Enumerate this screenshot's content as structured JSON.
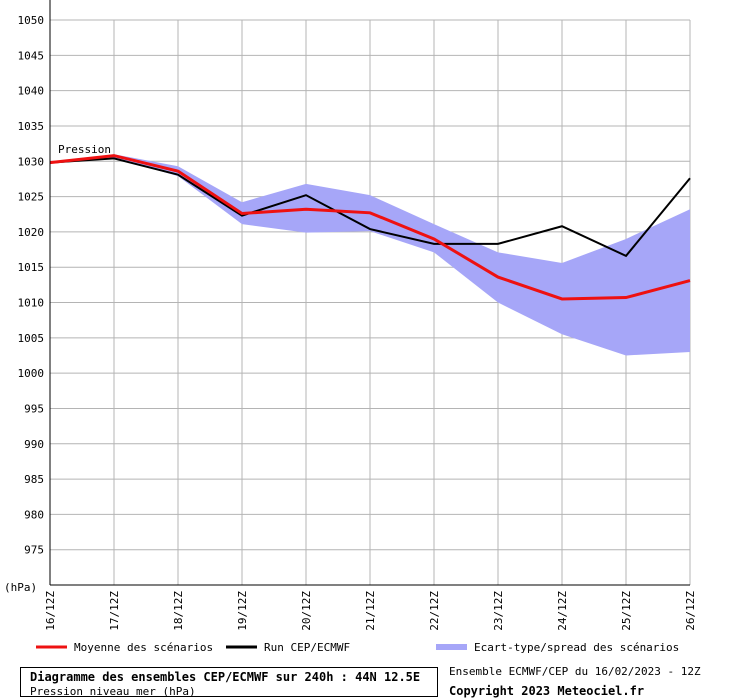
{
  "chart_data": {
    "type": "line",
    "title": "Diagramme des ensembles CEP/ECMWF sur 240h : 44N 12.5E",
    "subtitle": "Pression niveau mer (hPa)",
    "ylabel": "(hPa)",
    "inline_label": "Pression",
    "ylim": [
      970,
      1050
    ],
    "yticks": [
      975,
      980,
      985,
      990,
      995,
      1000,
      1005,
      1010,
      1015,
      1020,
      1025,
      1030,
      1035,
      1040,
      1045,
      1050
    ],
    "categories": [
      "16/12Z",
      "17/12Z",
      "18/12Z",
      "19/12Z",
      "20/12Z",
      "21/12Z",
      "22/12Z",
      "23/12Z",
      "24/12Z",
      "25/12Z",
      "26/12Z"
    ],
    "grid": true,
    "legend_position": "bottom",
    "series": [
      {
        "name": "Moyenne des scénarios",
        "color": "#ee1111",
        "values": [
          1029.8,
          1030.8,
          1028.6,
          1022.6,
          1023.2,
          1022.7,
          1019.0,
          1013.6,
          1010.5,
          1010.7,
          1013.1
        ]
      },
      {
        "name": "Run CEP/ECMWF",
        "color": "#000000",
        "values": [
          1029.8,
          1030.4,
          1028.1,
          1022.3,
          1025.2,
          1020.4,
          1018.3,
          1018.3,
          1020.8,
          1016.6,
          1027.6
        ]
      }
    ],
    "spread": {
      "name": "Ecart-type/spread des scénarios",
      "color": "#a6a6f8",
      "upper": [
        1029.8,
        1031.0,
        1029.3,
        1024.2,
        1026.8,
        1025.2,
        1021.1,
        1017.1,
        1015.6,
        1019.0,
        1023.2
      ],
      "lower": [
        1029.8,
        1030.5,
        1027.9,
        1021.1,
        1019.9,
        1020.1,
        1017.1,
        1010.0,
        1005.5,
        1002.5,
        1003.0
      ]
    }
  },
  "footer": {
    "title": "Diagramme des ensembles CEP/ECMWF sur 240h : 44N 12.5E",
    "subtitle": "Pression niveau mer (hPa)",
    "run_info": "Ensemble ECMWF/CEP du 16/02/2023 - 12Z",
    "copyright": "Copyright 2023 Meteociel.fr"
  }
}
